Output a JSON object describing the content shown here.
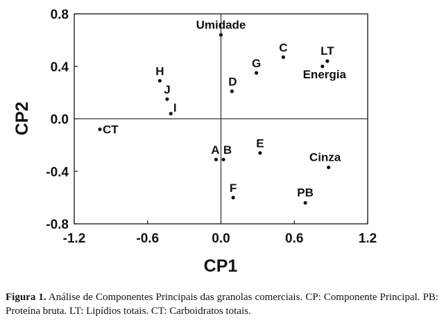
{
  "chart_data": {
    "type": "scatter",
    "xlabel": "CP1",
    "ylabel": "CP2",
    "xlim": [
      -1.2,
      1.2
    ],
    "ylim": [
      -0.8,
      0.8
    ],
    "xticks": [
      "-1.2",
      "-0.6",
      "0.0",
      "0.6",
      "1.2"
    ],
    "yticks": [
      "0.8",
      "0.4",
      "0.0",
      "-0.4",
      "-0.8"
    ],
    "grid": false,
    "reference_lines": {
      "x": 0.0,
      "y": 0.0
    },
    "points": [
      {
        "label": "Umidade",
        "x": 0.0,
        "y": 0.64
      },
      {
        "label": "C",
        "x": 0.51,
        "y": 0.47
      },
      {
        "label": "LT",
        "x": 0.87,
        "y": 0.44
      },
      {
        "label": "Energia",
        "x": 0.83,
        "y": 0.4
      },
      {
        "label": "G",
        "x": 0.29,
        "y": 0.35
      },
      {
        "label": "H",
        "x": -0.5,
        "y": 0.29
      },
      {
        "label": "D",
        "x": 0.09,
        "y": 0.21
      },
      {
        "label": "J",
        "x": -0.44,
        "y": 0.15
      },
      {
        "label": "I",
        "x": -0.41,
        "y": 0.04
      },
      {
        "label": "CT",
        "x": -0.99,
        "y": -0.08
      },
      {
        "label": "E",
        "x": 0.32,
        "y": -0.26
      },
      {
        "label": "A",
        "x": -0.04,
        "y": -0.31
      },
      {
        "label": "B",
        "x": 0.02,
        "y": -0.31
      },
      {
        "label": "Cinza",
        "x": 0.88,
        "y": -0.37
      },
      {
        "label": "F",
        "x": 0.1,
        "y": -0.6
      },
      {
        "label": "PB",
        "x": 0.69,
        "y": -0.64
      }
    ]
  },
  "caption": {
    "label": "Figura 1.",
    "text": "Análise de Componentes Principais das granolas comerciais. CP: Componente Principal. PB: Proteína bruta. LT: Lipídios totais. CT: Carboidratos totais."
  }
}
